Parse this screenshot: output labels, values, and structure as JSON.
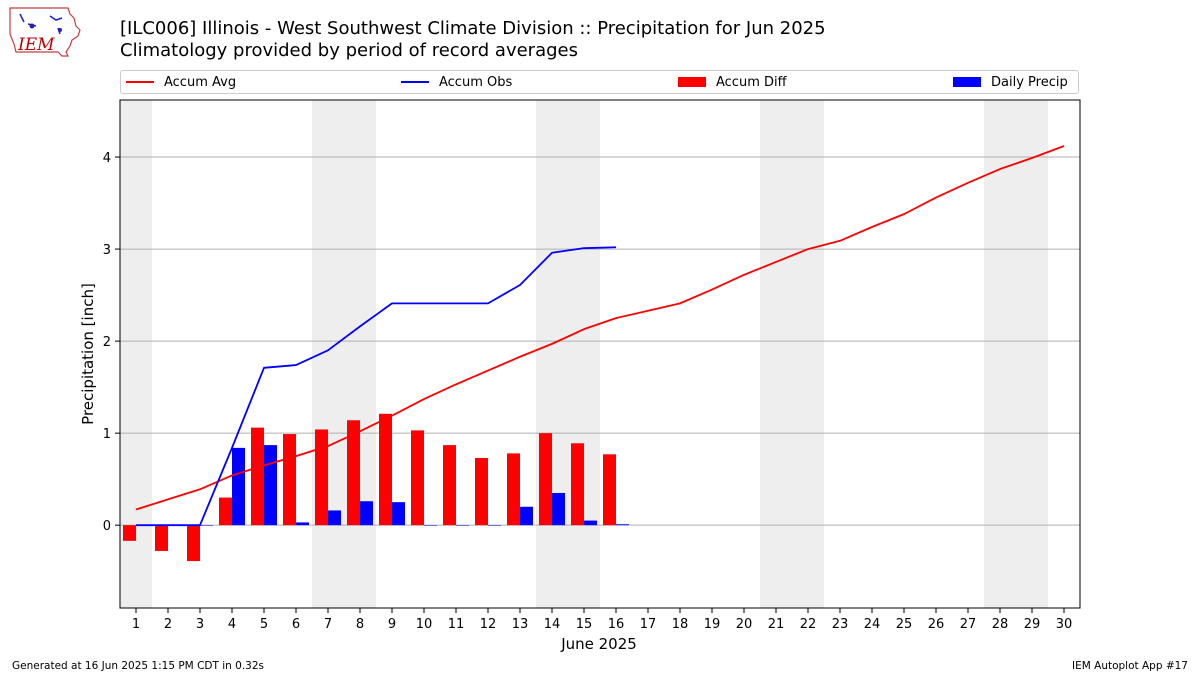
{
  "header": {
    "logo_text": "IEM",
    "title": "[ILC006] Illinois - West Southwest Climate Division :: Precipitation for Jun 2025",
    "subtitle": "Climatology provided by period of record averages"
  },
  "legend": {
    "placement": "top",
    "items": [
      {
        "label": "Accum Avg",
        "kind": "line",
        "color": "#ff0000"
      },
      {
        "label": "Accum Obs",
        "kind": "line",
        "color": "#0000ff"
      },
      {
        "label": "Accum Diff",
        "kind": "bar",
        "color": "#ff0000"
      },
      {
        "label": "Daily Precip",
        "kind": "bar",
        "color": "#0000ff"
      }
    ]
  },
  "chart_data": {
    "type": "bar",
    "xlabel": "June 2025",
    "ylabel": "Precipitation [inch]",
    "xlim": [
      1,
      30
    ],
    "ylim": [
      -0.9,
      4.62
    ],
    "yticks": [
      0,
      1,
      2,
      3,
      4
    ],
    "grid": true,
    "weekend_shading_days": [
      1,
      7,
      8,
      14,
      15,
      21,
      22,
      28,
      29
    ],
    "days": [
      1,
      2,
      3,
      4,
      5,
      6,
      7,
      8,
      9,
      10,
      11,
      12,
      13,
      14,
      15,
      16,
      17,
      18,
      19,
      20,
      21,
      22,
      23,
      24,
      25,
      26,
      27,
      28,
      29,
      30
    ],
    "series": [
      {
        "name": "Accum Avg",
        "kind": "line",
        "color": "#ff0000",
        "values": [
          0.17,
          0.28,
          0.39,
          0.54,
          0.65,
          0.75,
          0.86,
          1.02,
          1.19,
          1.37,
          1.53,
          1.68,
          1.83,
          1.97,
          2.13,
          2.25,
          2.33,
          2.41,
          2.56,
          2.72,
          2.86,
          3.0,
          3.09,
          3.24,
          3.38,
          3.56,
          3.72,
          3.87,
          3.99,
          4.12
        ]
      },
      {
        "name": "Accum Obs",
        "kind": "line",
        "color": "#0000ff",
        "values": [
          0.0,
          0.0,
          0.0,
          0.84,
          1.71,
          1.74,
          1.9,
          2.16,
          2.41,
          2.41,
          2.41,
          2.41,
          2.61,
          2.96,
          3.01,
          3.02
        ]
      },
      {
        "name": "Accum Diff",
        "kind": "bar",
        "color": "#ff0000",
        "values": [
          -0.17,
          -0.28,
          -0.39,
          0.3,
          1.06,
          0.99,
          1.04,
          1.14,
          1.21,
          1.03,
          0.87,
          0.73,
          0.78,
          1.0,
          0.89,
          0.77
        ]
      },
      {
        "name": "Daily Precip",
        "kind": "bar",
        "color": "#0000ff",
        "values": [
          0.0,
          0.0,
          0.0,
          0.84,
          0.87,
          0.03,
          0.16,
          0.26,
          0.25,
          0.0,
          0.0,
          0.0,
          0.2,
          0.35,
          0.05,
          0.01
        ]
      }
    ]
  },
  "footer": {
    "left": "Generated at 16 Jun 2025 1:15 PM CDT in 0.32s",
    "right": "IEM Autoplot App #17"
  }
}
